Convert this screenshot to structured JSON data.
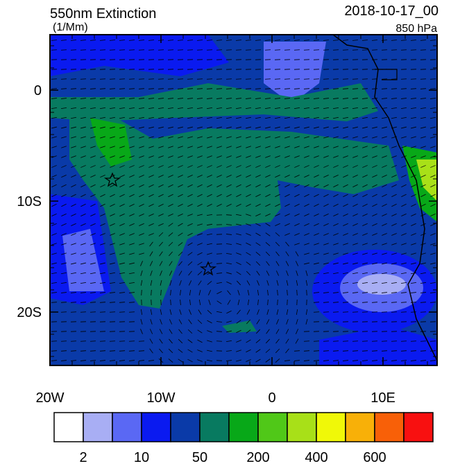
{
  "map": {
    "title": "550nm Extinction",
    "units": "(1/Mm)",
    "date": "2018-10-17_00",
    "level": "850 hPa",
    "lon_range": [
      -20,
      15
    ],
    "lat_range": [
      -25,
      5
    ],
    "xticks": [
      {
        "value": -20,
        "label": "20W"
      },
      {
        "value": -10,
        "label": "10W"
      },
      0,
      {
        "value": 10,
        "label": "10E"
      }
    ],
    "yticks": [
      0,
      {
        "value": -10,
        "label": "10S"
      },
      {
        "value": -20,
        "label": "20S"
      }
    ],
    "colorbar": {
      "colors": [
        "#ffffff",
        "#a8aef4",
        "#5a68f4",
        "#0a1af0",
        "#0a3aa8",
        "#087a60",
        "#08a818",
        "#50c818",
        "#a8e018",
        "#f0f808",
        "#f8b008",
        "#f86008",
        "#f81010"
      ],
      "labels": [
        2,
        10,
        50,
        200,
        400,
        600
      ]
    }
  }
}
